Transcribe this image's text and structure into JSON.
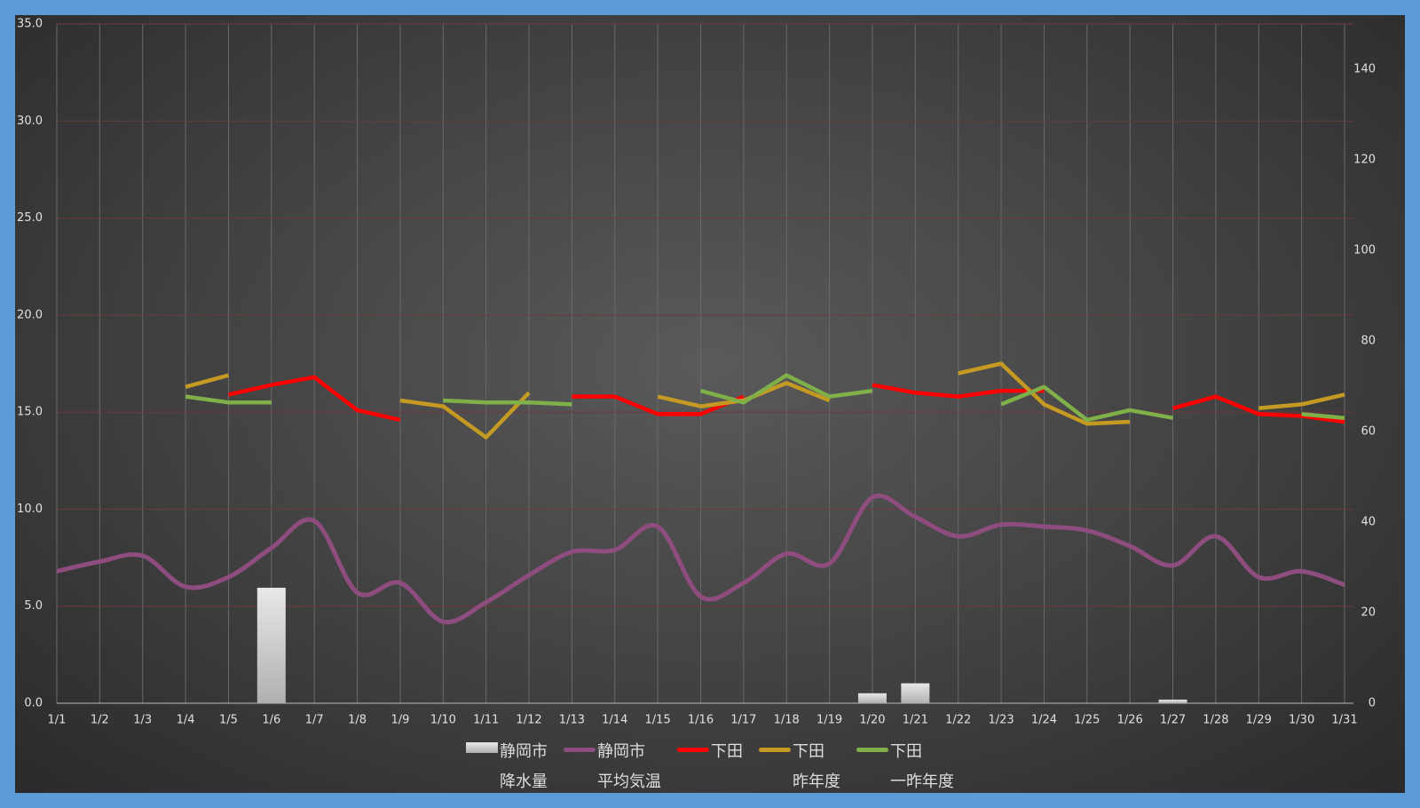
{
  "chart_data": {
    "type": "combo",
    "categories": [
      "1/1",
      "1/2",
      "1/3",
      "1/4",
      "1/5",
      "1/6",
      "1/7",
      "1/8",
      "1/9",
      "1/10",
      "1/11",
      "1/12",
      "1/13",
      "1/14",
      "1/15",
      "1/16",
      "1/17",
      "1/18",
      "1/19",
      "1/20",
      "1/21",
      "1/22",
      "1/23",
      "1/24",
      "1/25",
      "1/26",
      "1/27",
      "1/28",
      "1/29",
      "1/30",
      "1/31"
    ],
    "ylim": [
      0,
      35
    ],
    "yticks": [
      {
        "value": 0,
        "label": "0.0"
      },
      {
        "value": 5,
        "label": "5.0"
      },
      {
        "value": 10,
        "label": "10.0"
      },
      {
        "value": 15,
        "label": "15.0"
      },
      {
        "value": 20,
        "label": "20.0"
      },
      {
        "value": 25,
        "label": "25.0"
      },
      {
        "value": 30,
        "label": "30.0"
      },
      {
        "value": 35,
        "label": "35.0"
      }
    ],
    "y2lim": [
      0,
      150
    ],
    "y2ticks": [
      0,
      20,
      40,
      60,
      80,
      100,
      120,
      140
    ],
    "grid": true,
    "legend": "bottom",
    "series": [
      {
        "name": "静岡市\n降水量",
        "type": "bar",
        "axis": "y2",
        "color": "#b0b0b0",
        "values": [
          0,
          0,
          0,
          0,
          0,
          25.5,
          0,
          0,
          0,
          0,
          0,
          0,
          0,
          0,
          0,
          0,
          0,
          0,
          0,
          2.2,
          4.4,
          0,
          0,
          0,
          0,
          0,
          0.8,
          0,
          0,
          0,
          0
        ]
      },
      {
        "name": "静岡市\n平均気温",
        "type": "line",
        "smooth": true,
        "color": "#8e4d7e",
        "values": [
          6.8,
          7.3,
          7.6,
          6.0,
          6.5,
          8.0,
          9.4,
          5.7,
          6.2,
          4.2,
          5.2,
          6.6,
          7.8,
          7.9,
          9.1,
          5.5,
          6.2,
          7.7,
          7.2,
          10.6,
          9.6,
          8.6,
          9.2,
          9.1,
          8.9,
          8.1,
          7.1,
          8.6,
          6.5,
          6.8,
          6.1
        ]
      },
      {
        "name": "下田",
        "type": "line",
        "color": "#ff0000",
        "values": [
          null,
          null,
          null,
          null,
          15.9,
          16.4,
          16.8,
          15.1,
          14.6,
          null,
          null,
          null,
          15.8,
          15.8,
          14.9,
          14.9,
          15.8,
          null,
          null,
          16.4,
          16.0,
          15.8,
          16.1,
          16.1,
          null,
          null,
          15.2,
          15.8,
          14.9,
          14.8,
          14.5
        ]
      },
      {
        "name": "下田\n昨年度",
        "type": "line",
        "color": "#c49a22",
        "values": [
          null,
          null,
          null,
          16.3,
          16.9,
          null,
          null,
          null,
          15.6,
          15.3,
          13.7,
          16.0,
          null,
          null,
          15.8,
          15.3,
          15.6,
          16.5,
          15.6,
          null,
          null,
          17.0,
          17.5,
          15.4,
          14.4,
          14.5,
          null,
          null,
          15.2,
          15.4,
          15.9
        ]
      },
      {
        "name": "下田\n一昨年度",
        "type": "line",
        "color": "#7fb04a",
        "values": [
          null,
          null,
          null,
          15.8,
          15.5,
          15.5,
          null,
          null,
          null,
          15.6,
          15.5,
          15.5,
          15.4,
          null,
          null,
          16.1,
          15.5,
          16.9,
          15.8,
          16.1,
          null,
          null,
          15.4,
          16.3,
          14.6,
          15.1,
          14.7,
          null,
          null,
          14.9,
          14.7
        ]
      }
    ]
  }
}
